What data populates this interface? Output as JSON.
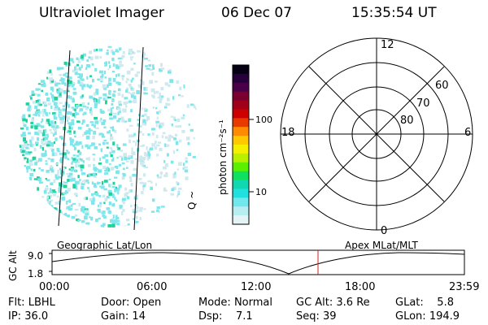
{
  "header": {
    "instrument": "Ultraviolet Imager",
    "date": "06 Dec 07",
    "time": "15:35:54 UT"
  },
  "colorbar": {
    "unit_label": "photon cm⁻²s⁻¹",
    "ticks": [
      "100",
      "10"
    ]
  },
  "globe": {
    "side_label": "Q ~"
  },
  "polar": {
    "hour_labels": {
      "top": "12",
      "left": "18",
      "right": "6",
      "bottom": "0"
    },
    "lat_labels": [
      "60",
      "70",
      "80"
    ]
  },
  "strip": {
    "left_title": "Geographic Lat/Lon",
    "right_title": "Apex MLat/MLT",
    "ylabel": "GC Alt",
    "y_ticks": [
      "9.0",
      "1.8"
    ],
    "x_ticks": [
      "00:00",
      "06:00",
      "12:00",
      "18:00",
      "23:59"
    ],
    "marker_time": "15:35"
  },
  "info": {
    "row1": [
      {
        "label": "Flt:",
        "value": "LBHL"
      },
      {
        "label": "Door:",
        "value": "Open"
      },
      {
        "label": "Mode:",
        "value": "Normal"
      },
      {
        "label": "GC Alt:",
        "value": "3.6 Re"
      },
      {
        "label": "GLat:",
        "value": "5.8"
      }
    ],
    "row2": [
      {
        "label": "IP:",
        "value": "36.0"
      },
      {
        "label": "Gain:",
        "value": "14"
      },
      {
        "label": "Dsp:",
        "value": "7.1"
      },
      {
        "label": "Seq:",
        "value": "39"
      },
      {
        "label": "GLon:",
        "value": "194.9"
      }
    ]
  },
  "colors": {
    "speck_cyan": "#7fe6ec",
    "speck_green": "#1fd29a",
    "speck_pale": "#cfe9ee",
    "marker": "#cc2222"
  }
}
